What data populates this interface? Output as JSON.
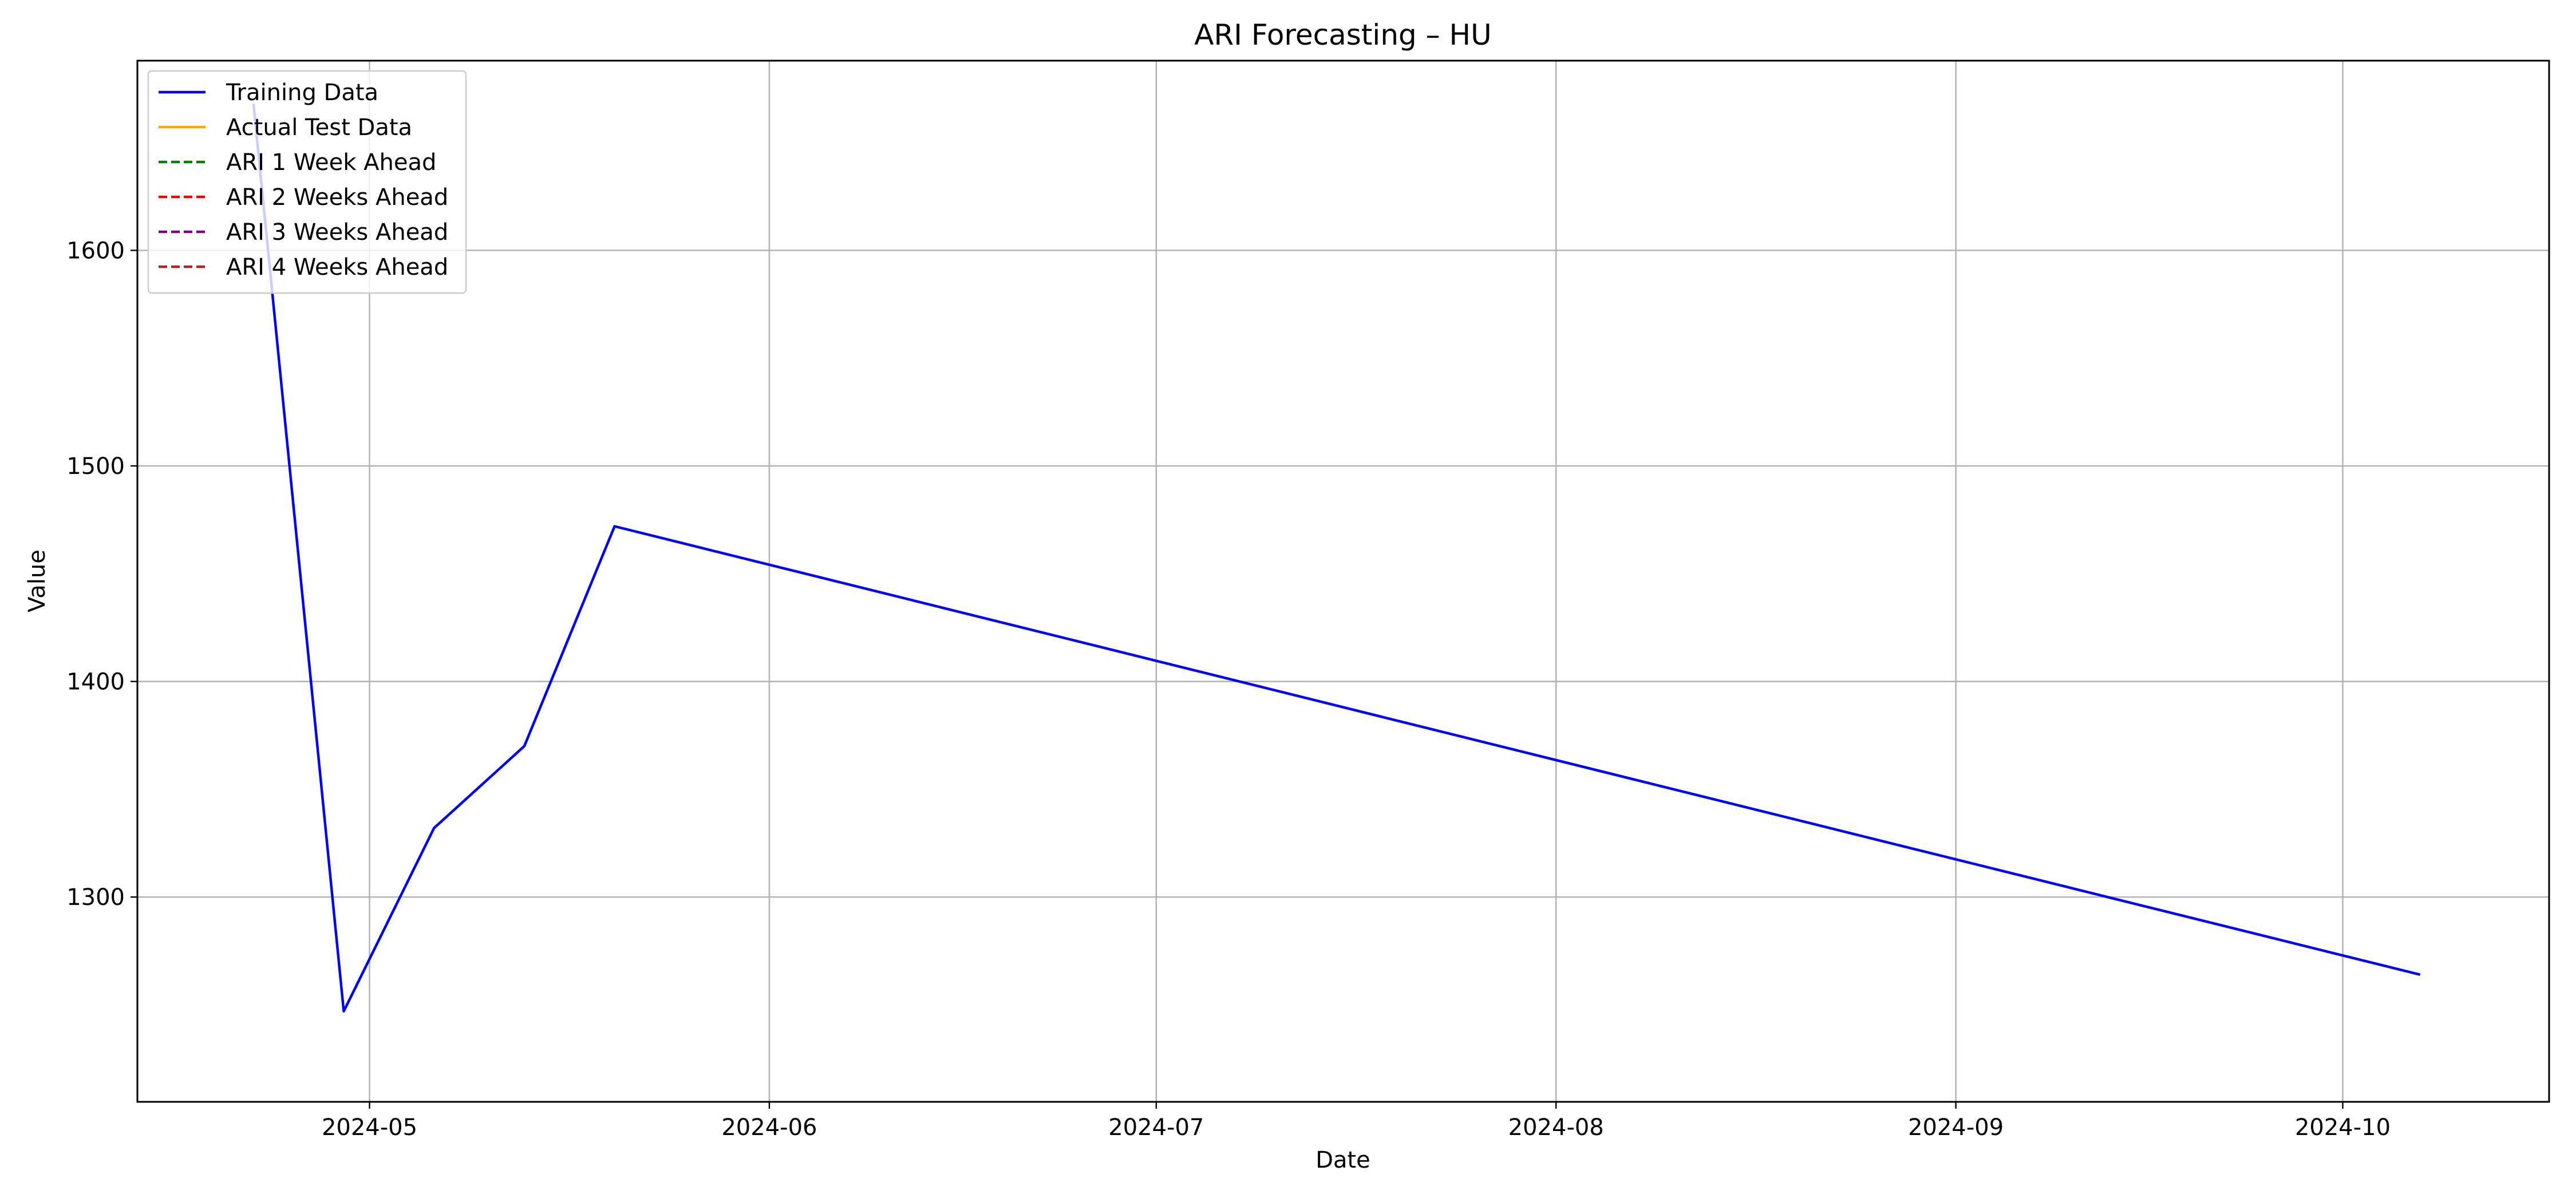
{
  "chart_data": {
    "type": "line",
    "title": "ARI Forecasting – HU",
    "xlabel": "Date",
    "ylabel": "Value",
    "x_type": "date",
    "xlim": [
      "2024-04-13",
      "2024-10-17"
    ],
    "ylim": [
      1205,
      1688
    ],
    "x_ticks": [
      "2024-05-01",
      "2024-06-01",
      "2024-07-01",
      "2024-08-01",
      "2024-09-01",
      "2024-10-01"
    ],
    "x_tick_labels": [
      "2024-05",
      "2024-06",
      "2024-07",
      "2024-08",
      "2024-09",
      "2024-10"
    ],
    "y_ticks": [
      1300,
      1400,
      1500,
      1600
    ],
    "y_tick_labels": [
      "1300",
      "1400",
      "1500",
      "1600"
    ],
    "grid": true,
    "legend_position": "upper-left",
    "series": [
      {
        "name": "Training Data",
        "color": "#0000ff",
        "style": "solid",
        "points": [
          {
            "x": "2024-04-22",
            "y": 1668
          },
          {
            "x": "2024-04-29",
            "y": 1247
          },
          {
            "x": "2024-05-06",
            "y": 1332
          },
          {
            "x": "2024-05-13",
            "y": 1370
          },
          {
            "x": "2024-05-20",
            "y": 1472
          },
          {
            "x": "2024-10-07",
            "y": 1264
          }
        ]
      },
      {
        "name": "Actual Test Data",
        "color": "#ffa500",
        "style": "solid",
        "points": []
      },
      {
        "name": "ARI 1 Week Ahead",
        "color": "#008000",
        "style": "dashed",
        "points": []
      },
      {
        "name": "ARI 2 Weeks Ahead",
        "color": "#ff0000",
        "style": "dashed",
        "points": []
      },
      {
        "name": "ARI 3 Weeks Ahead",
        "color": "#800080",
        "style": "dashed",
        "points": []
      },
      {
        "name": "ARI 4 Weeks Ahead",
        "color": "#b22222",
        "style": "dashed",
        "points": []
      }
    ]
  }
}
